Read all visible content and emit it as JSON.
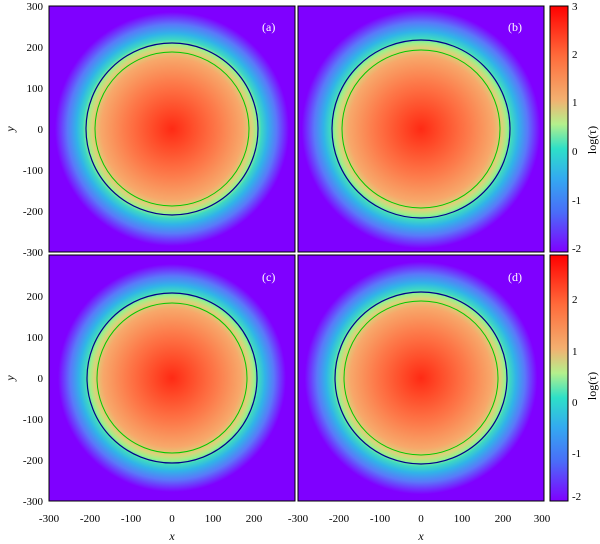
{
  "chart_data": [
    {
      "type": "heatmap",
      "panel_label": "(a)",
      "xlabel": "",
      "ylabel": "y",
      "xlim": [
        -300,
        300
      ],
      "ylim": [
        -300,
        300
      ],
      "xticks": [
        "-300",
        "-200",
        "-100",
        "0",
        "100",
        "200",
        "300"
      ],
      "yticks": [
        "-300",
        "-200",
        "-100",
        "0",
        "100",
        "200",
        "300"
      ],
      "center": [
        0,
        0
      ],
      "z_description": "log(tau) peaks at the center (~3) and falls off radially",
      "contours": [
        {
          "color": "#00008b",
          "radius": 210
        },
        {
          "color": "#00c800",
          "radius": 187
        }
      ]
    },
    {
      "type": "heatmap",
      "panel_label": "(b)",
      "xlabel": "",
      "ylabel": "",
      "xlim": [
        -300,
        300
      ],
      "ylim": [
        -300,
        300
      ],
      "center": [
        0,
        0
      ],
      "contours": [
        {
          "color": "#00008b",
          "radius": 217
        },
        {
          "color": "#00c800",
          "radius": 192
        }
      ]
    },
    {
      "type": "heatmap",
      "panel_label": "(c)",
      "xlabel": "x",
      "ylabel": "y",
      "xlim": [
        -300,
        300
      ],
      "ylim": [
        -300,
        300
      ],
      "xticks": [
        "-300",
        "-200",
        "-100",
        "0",
        "100",
        "200",
        "300"
      ],
      "yticks": [
        "-300",
        "-200",
        "-100",
        "0",
        "100",
        "200",
        "300"
      ],
      "center": [
        0,
        0
      ],
      "contours": [
        {
          "color": "#00008b",
          "radius": 207
        },
        {
          "color": "#00c800",
          "radius": 183
        }
      ]
    },
    {
      "type": "heatmap",
      "panel_label": "(d)",
      "xlabel": "x",
      "ylabel": "",
      "xlim": [
        -300,
        300
      ],
      "ylim": [
        -300,
        300
      ],
      "xticks": [
        "-300",
        "-200",
        "-100",
        "0",
        "100",
        "200",
        "300"
      ],
      "center": [
        0,
        0
      ],
      "contours": [
        {
          "color": "#00008b",
          "radius": 210
        },
        {
          "color": "#00c800",
          "radius": 187
        }
      ]
    }
  ],
  "colorbars": [
    {
      "label": "log(τ)",
      "ticks": [
        "3",
        "2",
        "1",
        "0",
        "-1",
        "-2"
      ],
      "range": [
        -2,
        3
      ]
    },
    {
      "label": "log(τ)",
      "ticks": [
        "2",
        "1",
        "0",
        "-1",
        "-2"
      ],
      "range": [
        -2,
        2.75
      ]
    }
  ],
  "colors": {
    "background_purple": "#7f00ff",
    "peak_red": "#ff2a14",
    "contour_blue": "#00008b",
    "contour_green": "#00c800"
  }
}
